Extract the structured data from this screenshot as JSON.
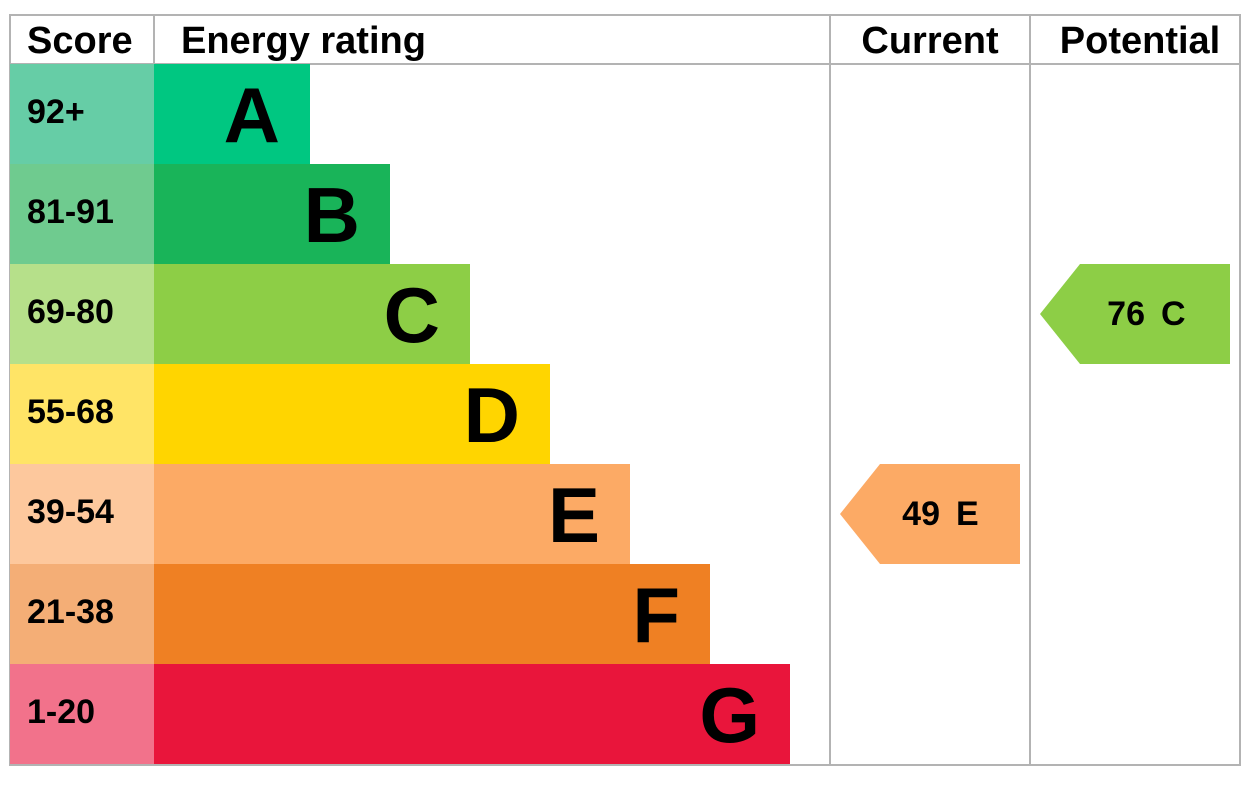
{
  "chart_data": {
    "type": "bar",
    "headers": {
      "score": "Score",
      "rating": "Energy rating",
      "current": "Current",
      "potential": "Potential"
    },
    "bands": [
      {
        "letter": "A",
        "range": "92+",
        "color": "#00c781",
        "score_bg": "#66cda6",
        "rank": 1
      },
      {
        "letter": "B",
        "range": "81-91",
        "color": "#19b459",
        "score_bg": "#6fcb8f",
        "rank": 2
      },
      {
        "letter": "C",
        "range": "69-80",
        "color": "#8dce46",
        "score_bg": "#b6e08a",
        "rank": 3
      },
      {
        "letter": "D",
        "range": "55-68",
        "color": "#ffd500",
        "score_bg": "#ffe466",
        "rank": 4
      },
      {
        "letter": "E",
        "range": "39-54",
        "color": "#fcaa65",
        "score_bg": "#fdc89d",
        "rank": 5
      },
      {
        "letter": "F",
        "range": "21-38",
        "color": "#ef8023",
        "score_bg": "#f4ae76",
        "rank": 6
      },
      {
        "letter": "G",
        "range": "1-20",
        "color": "#e9153b",
        "score_bg": "#f2728b",
        "rank": 7
      }
    ],
    "current": {
      "value": 49,
      "band": "E",
      "label_value": "49",
      "label_band": "E",
      "color": "#fcaa65"
    },
    "potential": {
      "value": 76,
      "band": "C",
      "label_value": "76",
      "label_band": "C",
      "color": "#8dce46"
    }
  }
}
